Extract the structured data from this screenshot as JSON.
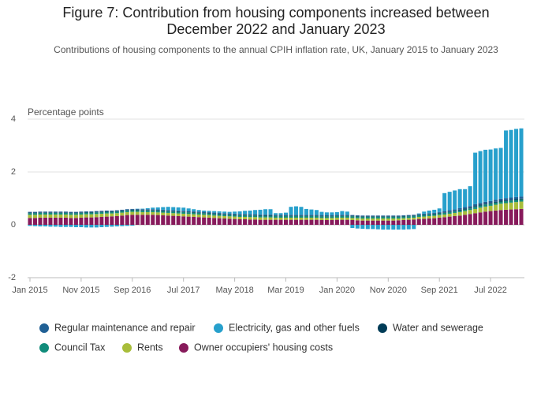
{
  "chart_data": {
    "type": "stacked_bar",
    "title": "Figure 7: Contribution from housing components increased between December 2022 and January 2023",
    "subtitle": "Contributions of housing components to the annual CPIH inflation rate, UK, January 2015 to January 2023",
    "y_label": "Percentage points",
    "categories": [
      "Jan 2015",
      null,
      null,
      null,
      null,
      null,
      null,
      null,
      null,
      null,
      "Nov 2015",
      null,
      null,
      null,
      null,
      null,
      null,
      null,
      null,
      null,
      "Sep 2016",
      null,
      null,
      null,
      null,
      null,
      null,
      null,
      null,
      null,
      "Jul 2017",
      null,
      null,
      null,
      null,
      null,
      null,
      null,
      null,
      null,
      "May 2018",
      null,
      null,
      null,
      null,
      null,
      null,
      null,
      null,
      null,
      "Mar 2019",
      null,
      null,
      null,
      null,
      null,
      null,
      null,
      null,
      null,
      "Jan 2020",
      null,
      null,
      null,
      null,
      null,
      null,
      null,
      null,
      null,
      "Nov 2020",
      null,
      null,
      null,
      null,
      null,
      null,
      null,
      null,
      null,
      "Sep 2021",
      null,
      null,
      null,
      null,
      null,
      null,
      null,
      null,
      null,
      "Jul 2022",
      null,
      null,
      null,
      null,
      null,
      null
    ],
    "ylim": [
      -2,
      4.2
    ],
    "yticks": [
      -2,
      0,
      2,
      4
    ],
    "grid": true,
    "series": [
      {
        "name": "Owner occupiers' housing costs",
        "color": "#871a5b",
        "values": [
          0.26,
          0.26,
          0.27,
          0.27,
          0.27,
          0.27,
          0.27,
          0.27,
          0.26,
          0.26,
          0.27,
          0.28,
          0.28,
          0.29,
          0.3,
          0.31,
          0.32,
          0.33,
          0.35,
          0.37,
          0.38,
          0.38,
          0.38,
          0.38,
          0.38,
          0.37,
          0.36,
          0.35,
          0.34,
          0.33,
          0.32,
          0.31,
          0.3,
          0.29,
          0.28,
          0.27,
          0.26,
          0.25,
          0.24,
          0.23,
          0.22,
          0.21,
          0.21,
          0.2,
          0.2,
          0.19,
          0.19,
          0.19,
          0.19,
          0.19,
          0.19,
          0.19,
          0.19,
          0.19,
          0.19,
          0.19,
          0.19,
          0.18,
          0.18,
          0.18,
          0.19,
          0.19,
          0.19,
          0.18,
          0.17,
          0.16,
          0.16,
          0.16,
          0.16,
          0.16,
          0.16,
          0.16,
          0.17,
          0.18,
          0.19,
          0.2,
          0.22,
          0.23,
          0.24,
          0.25,
          0.27,
          0.29,
          0.31,
          0.33,
          0.35,
          0.38,
          0.41,
          0.44,
          0.47,
          0.5,
          0.52,
          0.54,
          0.56,
          0.57,
          0.58,
          0.59,
          0.6
        ]
      },
      {
        "name": "Rents",
        "color": "#a8bd3a",
        "values": [
          0.12,
          0.12,
          0.12,
          0.12,
          0.12,
          0.12,
          0.12,
          0.12,
          0.12,
          0.12,
          0.12,
          0.12,
          0.12,
          0.12,
          0.12,
          0.12,
          0.11,
          0.11,
          0.11,
          0.11,
          0.11,
          0.11,
          0.1,
          0.1,
          0.1,
          0.1,
          0.1,
          0.1,
          0.1,
          0.1,
          0.1,
          0.1,
          0.1,
          0.1,
          0.1,
          0.1,
          0.09,
          0.09,
          0.09,
          0.09,
          0.09,
          0.09,
          0.09,
          0.09,
          0.09,
          0.09,
          0.09,
          0.09,
          0.08,
          0.08,
          0.08,
          0.08,
          0.08,
          0.08,
          0.08,
          0.08,
          0.08,
          0.08,
          0.08,
          0.08,
          0.08,
          0.08,
          0.08,
          0.08,
          0.08,
          0.08,
          0.08,
          0.08,
          0.08,
          0.08,
          0.08,
          0.08,
          0.07,
          0.07,
          0.07,
          0.07,
          0.08,
          0.08,
          0.09,
          0.09,
          0.1,
          0.1,
          0.11,
          0.12,
          0.13,
          0.14,
          0.15,
          0.16,
          0.18,
          0.19,
          0.2,
          0.22,
          0.24,
          0.25,
          0.26,
          0.27,
          0.28
        ]
      },
      {
        "name": "Council Tax",
        "color": "#118c7b",
        "values": [
          0.06,
          0.06,
          0.06,
          0.06,
          0.06,
          0.06,
          0.06,
          0.06,
          0.06,
          0.06,
          0.06,
          0.06,
          0.06,
          0.06,
          0.06,
          0.06,
          0.06,
          0.06,
          0.06,
          0.06,
          0.06,
          0.06,
          0.06,
          0.06,
          0.06,
          0.06,
          0.06,
          0.06,
          0.06,
          0.06,
          0.06,
          0.06,
          0.06,
          0.06,
          0.06,
          0.06,
          0.06,
          0.06,
          0.06,
          0.06,
          0.06,
          0.06,
          0.06,
          0.06,
          0.06,
          0.06,
          0.06,
          0.06,
          0.06,
          0.06,
          0.06,
          0.06,
          0.06,
          0.06,
          0.06,
          0.06,
          0.06,
          0.06,
          0.06,
          0.06,
          0.06,
          0.06,
          0.06,
          0.06,
          0.06,
          0.06,
          0.06,
          0.06,
          0.06,
          0.06,
          0.06,
          0.06,
          0.06,
          0.06,
          0.06,
          0.06,
          0.06,
          0.06,
          0.06,
          0.06,
          0.06,
          0.06,
          0.06,
          0.06,
          0.06,
          0.06,
          0.06,
          0.08,
          0.08,
          0.08,
          0.08,
          0.08,
          0.08,
          0.08,
          0.08,
          0.08,
          0.08
        ]
      },
      {
        "name": "Water and sewerage",
        "color": "#003c57",
        "values": [
          0.02,
          0.02,
          0.02,
          0.02,
          0.02,
          0.02,
          0.02,
          0.02,
          0.02,
          0.02,
          0.02,
          0.02,
          0.02,
          0.02,
          0.02,
          0.02,
          0.02,
          0.02,
          0.02,
          0.02,
          0.02,
          0.02,
          0.02,
          0.02,
          0.02,
          0.02,
          0.02,
          0.02,
          0.02,
          0.02,
          0.02,
          0.02,
          0.02,
          0.02,
          0.02,
          0.02,
          0.02,
          0.02,
          0.02,
          0.02,
          0.02,
          0.02,
          0.02,
          0.02,
          0.02,
          0.02,
          0.02,
          0.02,
          0.02,
          0.02,
          0.02,
          0.02,
          0.02,
          0.02,
          0.02,
          0.02,
          0.02,
          0.02,
          0.02,
          0.02,
          0.02,
          0.02,
          0.02,
          0.02,
          0.02,
          0.02,
          0.02,
          0.02,
          0.02,
          0.02,
          0.02,
          0.02,
          0.02,
          0.02,
          0.02,
          0.02,
          0.02,
          0.02,
          0.02,
          0.02,
          0.02,
          0.02,
          0.02,
          0.02,
          0.03,
          0.03,
          0.03,
          0.03,
          0.03,
          0.03,
          0.03,
          0.03,
          0.03,
          0.03,
          0.03,
          0.03,
          0.03
        ]
      },
      {
        "name": "Regular maintenance and repair",
        "color": "#206095",
        "values": [
          0.03,
          0.03,
          0.03,
          0.03,
          0.03,
          0.03,
          0.03,
          0.03,
          0.03,
          0.03,
          0.03,
          0.03,
          0.03,
          0.03,
          0.03,
          0.03,
          0.03,
          0.03,
          0.03,
          0.03,
          0.03,
          0.03,
          0.03,
          0.03,
          0.03,
          0.03,
          0.03,
          0.03,
          0.03,
          0.03,
          0.03,
          0.03,
          0.03,
          0.03,
          0.03,
          0.03,
          0.03,
          0.03,
          0.03,
          0.03,
          0.03,
          0.03,
          0.03,
          0.03,
          0.03,
          0.03,
          0.03,
          0.03,
          0.03,
          0.03,
          0.03,
          0.03,
          0.03,
          0.03,
          0.03,
          0.03,
          0.03,
          0.03,
          0.03,
          0.03,
          0.03,
          0.03,
          0.03,
          0.03,
          0.03,
          0.03,
          0.03,
          0.03,
          0.03,
          0.03,
          0.03,
          0.03,
          0.03,
          0.03,
          0.03,
          0.03,
          0.03,
          0.03,
          0.03,
          0.03,
          0.03,
          0.05,
          0.05,
          0.05,
          0.06,
          0.06,
          0.06,
          0.07,
          0.07,
          0.07,
          0.07,
          0.08,
          0.08,
          0.08,
          0.08,
          0.08,
          0.08
        ]
      },
      {
        "name": "Electricity, gas and other fuels",
        "color": "#27a0cc",
        "values": [
          -0.04,
          -0.05,
          -0.06,
          -0.06,
          -0.07,
          -0.07,
          -0.08,
          -0.08,
          -0.08,
          -0.09,
          -0.09,
          -0.1,
          -0.1,
          -0.1,
          -0.09,
          -0.08,
          -0.07,
          -0.06,
          -0.05,
          -0.04,
          -0.03,
          0.01,
          0.02,
          0.04,
          0.06,
          0.08,
          0.1,
          0.12,
          0.12,
          0.12,
          0.12,
          0.1,
          0.08,
          0.06,
          0.05,
          0.05,
          0.06,
          0.06,
          0.06,
          0.06,
          0.08,
          0.1,
          0.12,
          0.14,
          0.16,
          0.18,
          0.2,
          0.2,
          0.06,
          0.06,
          0.08,
          0.3,
          0.32,
          0.3,
          0.22,
          0.2,
          0.18,
          0.12,
          0.1,
          0.1,
          0.1,
          0.14,
          0.12,
          -0.12,
          -0.14,
          -0.15,
          -0.16,
          -0.16,
          -0.17,
          -0.18,
          -0.18,
          -0.18,
          -0.18,
          -0.18,
          -0.17,
          -0.16,
          0.02,
          0.08,
          0.1,
          0.12,
          0.14,
          0.68,
          0.7,
          0.72,
          0.72,
          0.68,
          0.75,
          1.95,
          1.96,
          1.97,
          1.95,
          1.94,
          1.92,
          2.56,
          2.56,
          2.58,
          2.58
        ]
      }
    ]
  }
}
